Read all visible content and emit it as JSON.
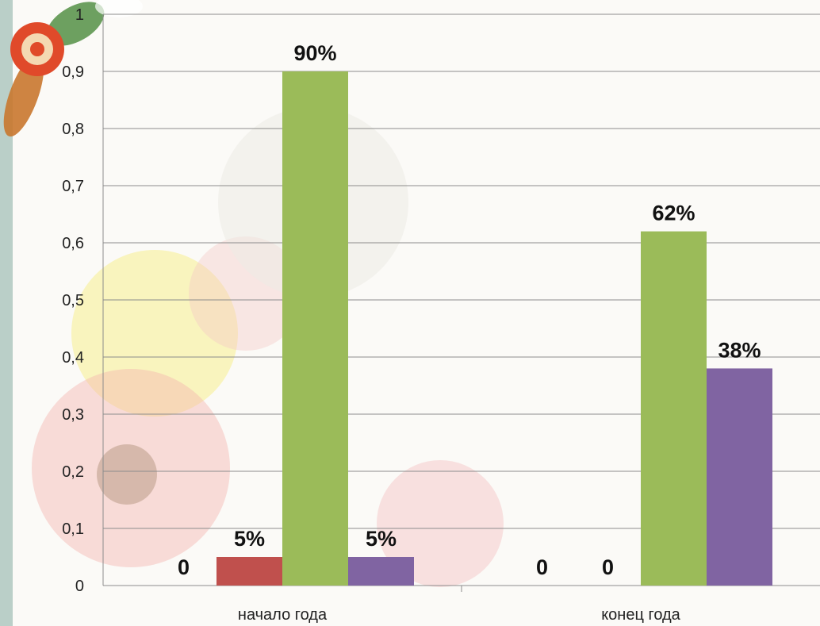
{
  "chart_data": {
    "type": "bar",
    "categories": [
      "начало года",
      "конец года"
    ],
    "series": [
      {
        "color": "#4f81bd",
        "values": [
          0,
          0
        ],
        "labels": [
          "0",
          "0"
        ]
      },
      {
        "color": "#c0504d",
        "values": [
          0.05,
          0
        ],
        "labels": [
          "5%",
          "0"
        ]
      },
      {
        "color": "#9bbb59",
        "values": [
          0.9,
          0.62
        ],
        "labels": [
          "90%",
          "62%"
        ]
      },
      {
        "color": "#8064a2",
        "values": [
          0.05,
          0.38
        ],
        "labels": [
          "5%",
          "38%"
        ]
      }
    ],
    "yticks": [
      "0",
      "0,1",
      "0,2",
      "0,3",
      "0,4",
      "0,5",
      "0,6",
      "0,7",
      "0,8",
      "0,9",
      "1"
    ],
    "ylim": [
      0,
      1
    ],
    "grid": true,
    "legend": "none",
    "xlabel": "",
    "ylabel": ""
  }
}
